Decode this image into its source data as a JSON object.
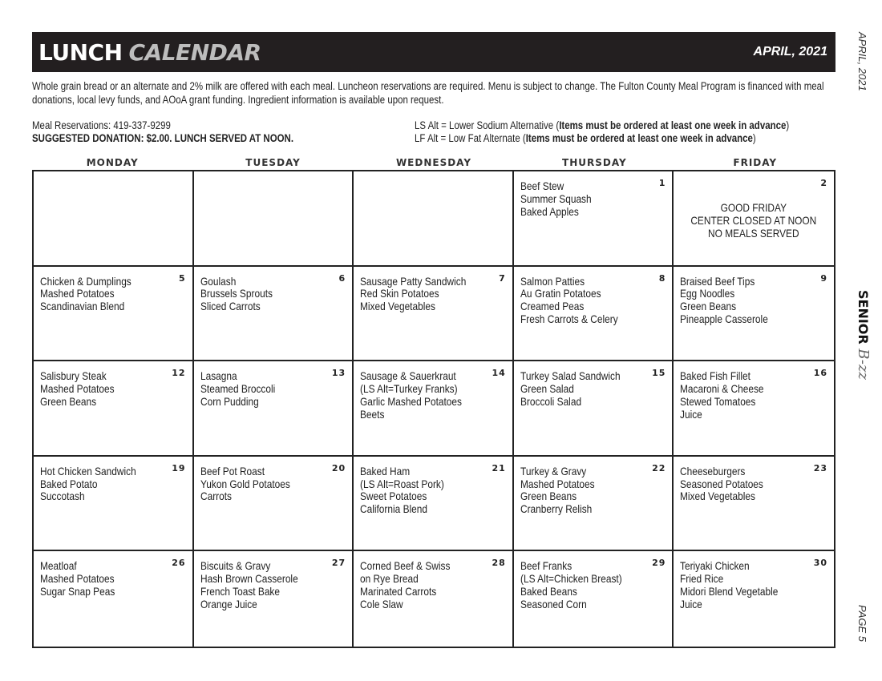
{
  "header": {
    "title_bold": "LUNCH",
    "title_light": "CALENDAR",
    "date": "APRIL, 2021"
  },
  "description": "Whole grain bread or an alternate and 2% milk are offered with each meal. Luncheon reservations are required. Menu is subject to change. The Fulton County Meal Program is financed with meal donations, local levy funds, and AOoA grant funding. Ingredient information is available upon request.",
  "reservations": "Meal Reservations: 419-337-9299",
  "donation": "SUGGESTED DONATION: $2.00. LUNCH SERVED AT NOON.",
  "ls_alt": {
    "prefix": "LS Alt = Lower Sodium Alternative (",
    "bold": "Items must be ordered at least one week in advance",
    "suffix": ")"
  },
  "lf_alt": {
    "prefix": "LF Alt = Low Fat Alternate (",
    "bold": "Items must be ordered at least one week in advance",
    "suffix": ")"
  },
  "days": [
    "MONDAY",
    "TUESDAY",
    "WEDNESDAY",
    "THURSDAY",
    "FRIDAY"
  ],
  "cells": [
    {
      "day": "",
      "items": []
    },
    {
      "day": "",
      "items": []
    },
    {
      "day": "",
      "items": []
    },
    {
      "day": "1",
      "items": [
        "Beef Stew",
        "Summer Squash",
        "Baked Apples"
      ]
    },
    {
      "day": "2",
      "items": [],
      "note": [
        "GOOD FRIDAY",
        "CENTER CLOSED AT NOON",
        "NO MEALS SERVED"
      ]
    },
    {
      "day": "5",
      "items": [
        "Chicken & Dumplings",
        "Mashed Potatoes",
        "Scandinavian Blend"
      ]
    },
    {
      "day": "6",
      "items": [
        "Goulash",
        "Brussels Sprouts",
        "Sliced Carrots"
      ]
    },
    {
      "day": "7",
      "items": [
        "Sausage Patty Sandwich",
        "Red Skin Potatoes",
        "Mixed Vegetables"
      ]
    },
    {
      "day": "8",
      "items": [
        "Salmon Patties",
        "Au Gratin Potatoes",
        "Creamed Peas",
        "Fresh Carrots & Celery"
      ]
    },
    {
      "day": "9",
      "items": [
        "Braised Beef Tips",
        "Egg Noodles",
        "Green Beans",
        "Pineapple Casserole"
      ]
    },
    {
      "day": "12",
      "items": [
        "Salisbury Steak",
        "Mashed Potatoes",
        "Green Beans"
      ]
    },
    {
      "day": "13",
      "items": [
        "Lasagna",
        "Steamed Broccoli",
        "Corn Pudding"
      ]
    },
    {
      "day": "14",
      "items": [
        "Sausage & Sauerkraut",
        "(LS Alt=Turkey Franks)",
        "Garlic Mashed Potatoes",
        "Beets"
      ]
    },
    {
      "day": "15",
      "items": [
        "Turkey Salad Sandwich",
        "Green Salad",
        "Broccoli Salad"
      ]
    },
    {
      "day": "16",
      "items": [
        "Baked Fish Fillet",
        "Macaroni & Cheese",
        "Stewed Tomatoes",
        "Juice"
      ]
    },
    {
      "day": "19",
      "items": [
        "Hot Chicken Sandwich",
        "Baked Potato",
        "Succotash"
      ]
    },
    {
      "day": "20",
      "items": [
        "Beef Pot Roast",
        "Yukon Gold Potatoes",
        "Carrots"
      ]
    },
    {
      "day": "21",
      "items": [
        "Baked Ham",
        "(LS Alt=Roast Pork)",
        "Sweet Potatoes",
        "California Blend"
      ]
    },
    {
      "day": "22",
      "items": [
        "Turkey & Gravy",
        "Mashed Potatoes",
        "Green Beans",
        "Cranberry Relish"
      ]
    },
    {
      "day": "23",
      "items": [
        "Cheeseburgers",
        "Seasoned Potatoes",
        "Mixed Vegetables"
      ]
    },
    {
      "day": "26",
      "items": [
        "Meatloaf",
        "Mashed Potatoes",
        "Sugar Snap Peas"
      ]
    },
    {
      "day": "27",
      "items": [
        "Biscuits & Gravy",
        "Hash Brown Casserole",
        "French Toast Bake",
        "Orange Juice"
      ]
    },
    {
      "day": "28",
      "items": [
        "Corned Beef & Swiss",
        "on Rye Bread",
        "Marinated Carrots",
        "Cole Slaw"
      ]
    },
    {
      "day": "29",
      "items": [
        "Beef Franks",
        "(LS Alt=Chicken Breast)",
        "Baked Beans",
        "Seasoned Corn"
      ]
    },
    {
      "day": "30",
      "items": [
        "Teriyaki Chicken",
        "Fried Rice",
        "Midori Blend Vegetable",
        "Juice"
      ]
    }
  ],
  "side": {
    "date": "APRIL, 2021",
    "logo_bold": "SENIOR",
    "logo_script": "B-zz",
    "page": "PAGE 5"
  }
}
